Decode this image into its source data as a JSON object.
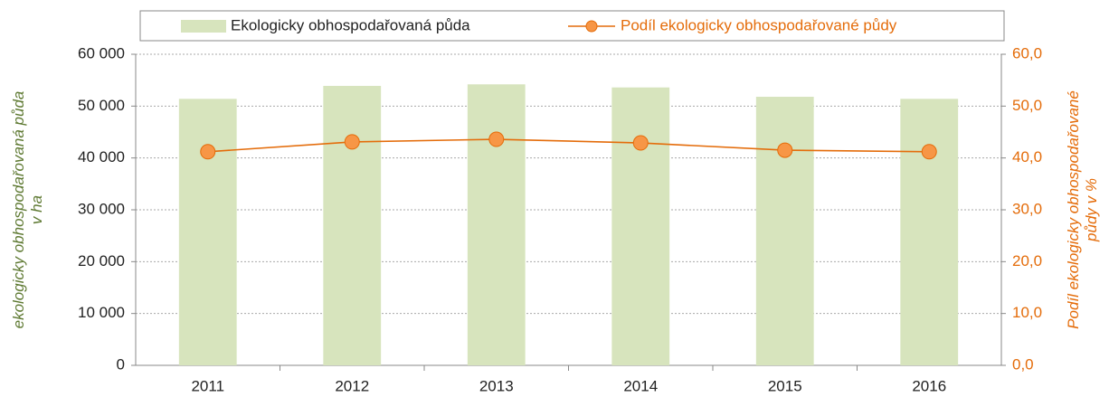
{
  "chart_data": {
    "type": "bar",
    "categories": [
      "2011",
      "2012",
      "2013",
      "2014",
      "2015",
      "2016"
    ],
    "series": [
      {
        "name": "Ekologicky obhospodařovaná půda",
        "type": "bar",
        "color": "#d7e4bd",
        "values": [
          51400,
          53900,
          54200,
          53600,
          51800,
          51400
        ]
      },
      {
        "name": "Podíl ekologicky obhospodařované půdy",
        "type": "line",
        "axis": "y2",
        "color": "#e46c0a",
        "values": [
          41.2,
          43.1,
          43.6,
          42.9,
          41.5,
          41.2
        ]
      }
    ],
    "ylim": [
      0,
      60000
    ],
    "yticks": [
      0,
      {
        "value": 10000,
        "label": "10 000"
      },
      {
        "value": 20000,
        "label": "20 000"
      },
      {
        "value": 30000,
        "label": "30 000"
      },
      {
        "value": 40000,
        "label": "40 000"
      },
      {
        "value": 50000,
        "label": "50 000"
      },
      {
        "value": 60000,
        "label": "60 000"
      }
    ],
    "y2lim": [
      0,
      60
    ],
    "y2ticks": [
      {
        "value": 0,
        "label": "0,0"
      },
      {
        "value": 10,
        "label": "10,0"
      },
      {
        "value": 20,
        "label": "20,0"
      },
      {
        "value": 30,
        "label": "30,0"
      },
      {
        "value": 40,
        "label": "40,0"
      },
      {
        "value": 50,
        "label": "50,0"
      },
      {
        "value": 60,
        "label": "60,0"
      }
    ],
    "y_label": [
      "ekologicky obhospodařovaná půda",
      "v ha"
    ],
    "y2_label": [
      "Podíl ekologicky obhospodařované",
      "půdy v %"
    ],
    "grid": true,
    "legend": "top"
  }
}
